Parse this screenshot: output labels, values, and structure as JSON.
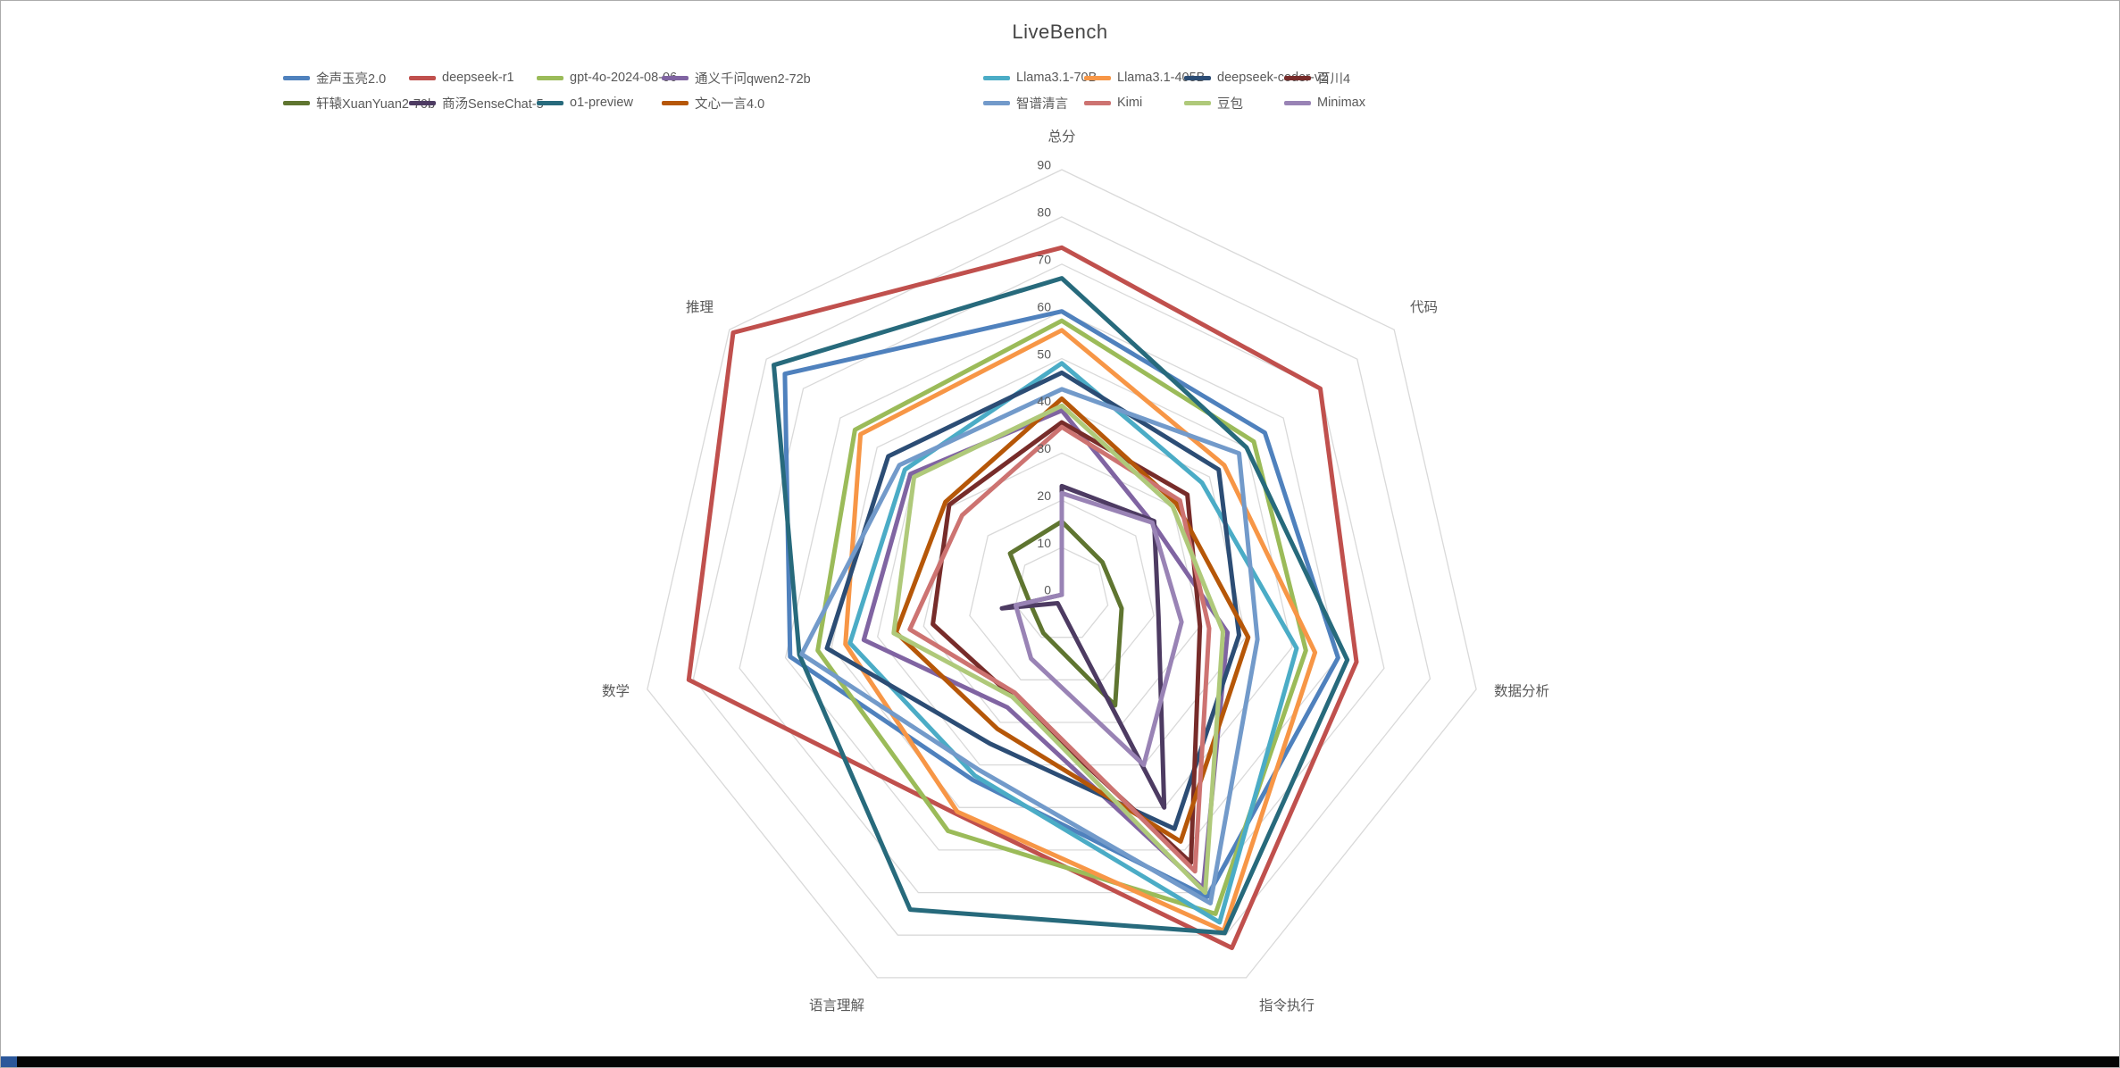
{
  "window": {
    "bottom_bar_color": "#050505",
    "bottom_accent_color": "#2b579a"
  },
  "chart_data": {
    "type": "radar",
    "title": "LiveBench",
    "grid": true,
    "legend_position": "top",
    "grid_color": "#d9d9d9",
    "label_color": "#595959",
    "categories": [
      "总分",
      "代码",
      "数据分析",
      "指令执行",
      "语言理解",
      "数学",
      "推理"
    ],
    "radial_axis": {
      "min": 0,
      "max": 90,
      "tick_interval": 10,
      "tick_labels": [
        "0",
        "10",
        "20",
        "30",
        "40",
        "50",
        "60",
        "70",
        "80",
        "90"
      ]
    },
    "series": [
      {
        "name": "金声玉亮2.0",
        "color": "#4F81BD",
        "values": [
          60,
          55,
          60,
          71,
          43.5,
          59,
          75
        ]
      },
      {
        "name": "deepseek-r1",
        "color": "#C0504D",
        "values": [
          73.5,
          70,
          64,
          83,
          51.5,
          81,
          89
        ]
      },
      {
        "name": "gpt-4o-2024-08-06",
        "color": "#9BBB59",
        "values": [
          58,
          52,
          53,
          75,
          55.5,
          53,
          56
        ]
      },
      {
        "name": "通义千问qwen2-72b",
        "color": "#8064A2",
        "values": [
          39,
          24.5,
          36,
          69,
          26.5,
          43,
          41
        ]
      },
      {
        "name": "Llama3.1-70B",
        "color": "#4BACC6",
        "values": [
          49,
          38,
          51,
          77,
          42.5,
          46,
          42.5
        ]
      },
      {
        "name": "Llama3.1-405B",
        "color": "#F79646",
        "values": [
          56,
          44,
          55,
          79,
          51,
          47,
          54.5
        ]
      },
      {
        "name": "deepseek-coder-v2",
        "color": "#2C4D75",
        "values": [
          47,
          42.5,
          38.5,
          55,
          35,
          51,
          47
        ]
      },
      {
        "name": "百川4",
        "color": "#772C2A",
        "values": [
          36.5,
          34,
          30,
          63,
          24,
          28,
          30.5
        ]
      },
      {
        "name": "轩辕XuanYuan2-70b",
        "color": "#5F7530",
        "values": [
          15.5,
          11,
          13,
          26,
          9,
          7,
          14
        ]
      },
      {
        "name": "商汤SenseChat-5",
        "color": "#4D3B62",
        "values": [
          23,
          25,
          21,
          50,
          2,
          13,
          0
        ]
      },
      {
        "name": "o1-preview",
        "color": "#276A7C",
        "values": [
          67,
          50,
          62,
          79.5,
          74,
          57,
          78
        ]
      },
      {
        "name": "文心一言4.0",
        "color": "#B65708",
        "values": [
          41.5,
          31,
          40.5,
          58,
          31.5,
          36,
          31.5
        ]
      },
      {
        "name": "智谱清言",
        "color": "#729ACA",
        "values": [
          43.5,
          48,
          42.5,
          72.5,
          41,
          56.5,
          44
        ]
      },
      {
        "name": "Kimi",
        "color": "#CD7371",
        "values": [
          35.5,
          32,
          32,
          65,
          23,
          33,
          27
        ]
      },
      {
        "name": "豆包",
        "color": "#AFC97A",
        "values": [
          40,
          30,
          35,
          70,
          24,
          36.5,
          40
        ]
      },
      {
        "name": "Minimax",
        "color": "#9983B5",
        "values": [
          21.5,
          24.5,
          26,
          40,
          15,
          10,
          0
        ]
      }
    ]
  }
}
